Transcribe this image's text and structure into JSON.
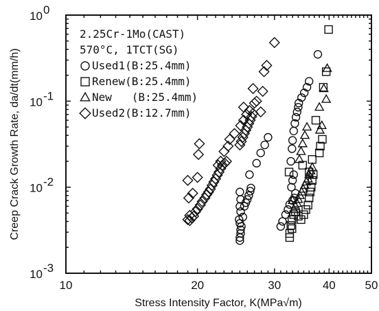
{
  "chart_data": {
    "type": "scatter",
    "xlabel": "Stress Intensity Factor, K(MPa√m)",
    "ylabel": "Creep Crack Growth Rate, da/dt(mm/h)",
    "x_scale": "log",
    "y_scale": "log",
    "xlim": [
      10,
      50
    ],
    "ylim": [
      0.001,
      1
    ],
    "x_ticks": [
      10,
      20,
      30,
      40,
      50
    ],
    "x_tick_labels": [
      "10",
      "20",
      "30",
      "40",
      "50"
    ],
    "y_ticks": [
      0.001,
      0.01,
      0.1,
      1
    ],
    "y_tick_labels": [
      {
        "base": "10",
        "exp": "-3"
      },
      {
        "base": "10",
        "exp": "-2"
      },
      {
        "base": "10",
        "exp": "-1"
      },
      {
        "base": "10",
        "exp": "0"
      }
    ],
    "annotation_lines": [
      "2.25Cr-1Mo(CAST)",
      "570°C, 1TCT(SG)"
    ],
    "grid": false,
    "legend_position": "top-left",
    "series": [
      {
        "name": "Used1(B:25.4mm)",
        "marker": "circle",
        "points": [
          [
            25.0,
            0.0024
          ],
          [
            25.0,
            0.0026
          ],
          [
            25.1,
            0.0029
          ],
          [
            25.1,
            0.0032
          ],
          [
            25.2,
            0.0035
          ],
          [
            25.0,
            0.0038
          ],
          [
            24.9,
            0.0042
          ],
          [
            25.4,
            0.0045
          ],
          [
            25.1,
            0.0052
          ],
          [
            25.0,
            0.006
          ],
          [
            25.1,
            0.0072
          ],
          [
            25.0,
            0.0088
          ],
          [
            25.6,
            0.006
          ],
          [
            25.8,
            0.0066
          ],
          [
            26.0,
            0.0072
          ],
          [
            26.2,
            0.008
          ],
          [
            26.4,
            0.009
          ],
          [
            26.5,
            0.0098
          ],
          [
            26.3,
            0.014
          ],
          [
            27.3,
            0.019
          ],
          [
            27.9,
            0.025
          ],
          [
            28.5,
            0.031
          ],
          [
            29.0,
            0.038
          ],
          [
            31.0,
            0.0035
          ],
          [
            31.3,
            0.004
          ],
          [
            31.8,
            0.0048
          ],
          [
            32.2,
            0.0055
          ],
          [
            32.5,
            0.0063
          ],
          [
            33.0,
            0.007
          ],
          [
            33.3,
            0.0075
          ],
          [
            33.5,
            0.0085
          ],
          [
            32.8,
            0.01
          ],
          [
            33.0,
            0.012
          ],
          [
            33.2,
            0.014
          ],
          [
            32.7,
            0.02
          ],
          [
            32.9,
            0.028
          ],
          [
            33.0,
            0.035
          ],
          [
            33.2,
            0.045
          ],
          [
            33.4,
            0.055
          ],
          [
            33.6,
            0.065
          ],
          [
            33.8,
            0.075
          ],
          [
            34.0,
            0.085
          ],
          [
            34.1,
            0.095
          ],
          [
            34.6,
            0.11
          ],
          [
            35.1,
            0.125
          ],
          [
            35.6,
            0.145
          ],
          [
            36.0,
            0.17
          ],
          [
            37.7,
            0.35
          ]
        ]
      },
      {
        "name": "Renew(B:25.4mm)",
        "marker": "square",
        "points": [
          [
            32.5,
            0.0026
          ],
          [
            32.5,
            0.0029
          ],
          [
            32.9,
            0.0033
          ],
          [
            32.7,
            0.0036
          ],
          [
            32.9,
            0.0042
          ],
          [
            33.2,
            0.0048
          ],
          [
            33.5,
            0.0052
          ],
          [
            34.0,
            0.0046
          ],
          [
            34.5,
            0.0042
          ],
          [
            35.0,
            0.0048
          ],
          [
            35.4,
            0.0055
          ],
          [
            35.8,
            0.0062
          ],
          [
            36.0,
            0.0075
          ],
          [
            36.2,
            0.0088
          ],
          [
            36.4,
            0.01
          ],
          [
            36.6,
            0.012
          ],
          [
            36.8,
            0.014
          ],
          [
            34.8,
            0.018
          ],
          [
            36.0,
            0.015
          ],
          [
            36.6,
            0.021
          ],
          [
            38.0,
            0.025
          ],
          [
            38.2,
            0.03
          ],
          [
            38.6,
            0.036
          ],
          [
            32.4,
            0.015
          ],
          [
            37.3,
            0.06
          ],
          [
            38.8,
            0.145
          ],
          [
            39.4,
            0.22
          ],
          [
            39.9,
            0.68
          ]
        ]
      },
      {
        "name": "New   (B:25.4mm)",
        "marker": "triangle",
        "points": [
          [
            33.2,
            0.0055
          ],
          [
            33.5,
            0.006
          ],
          [
            33.8,
            0.0065
          ],
          [
            34.0,
            0.0072
          ],
          [
            34.3,
            0.008
          ],
          [
            34.6,
            0.0088
          ],
          [
            34.9,
            0.0095
          ],
          [
            35.2,
            0.0105
          ],
          [
            35.5,
            0.0115
          ],
          [
            35.8,
            0.0125
          ],
          [
            36.0,
            0.014
          ],
          [
            36.3,
            0.0155
          ],
          [
            36.6,
            0.017
          ],
          [
            34.2,
            0.021
          ],
          [
            34.5,
            0.026
          ],
          [
            34.8,
            0.032
          ],
          [
            35.2,
            0.04
          ],
          [
            35.6,
            0.05
          ],
          [
            38.1,
            0.046
          ],
          [
            38.5,
            0.052
          ],
          [
            39.6,
            0.24
          ],
          [
            39.4,
            0.105
          ],
          [
            38.9,
            0.14
          ],
          [
            38.0,
            0.085
          ],
          [
            33.0,
            0.007
          ]
        ]
      },
      {
        "name": "Used2(B:12.7mm)",
        "marker": "diamond",
        "points": [
          [
            19.0,
            0.0042
          ],
          [
            19.2,
            0.0041
          ],
          [
            19.4,
            0.0044
          ],
          [
            19.6,
            0.0046
          ],
          [
            19.2,
            0.0047
          ],
          [
            19.8,
            0.0052
          ],
          [
            20.0,
            0.0056
          ],
          [
            20.3,
            0.0062
          ],
          [
            20.5,
            0.0068
          ],
          [
            20.8,
            0.0075
          ],
          [
            21.0,
            0.0082
          ],
          [
            21.2,
            0.0088
          ],
          [
            21.4,
            0.0095
          ],
          [
            21.6,
            0.0105
          ],
          [
            21.8,
            0.0115
          ],
          [
            22.0,
            0.0125
          ],
          [
            22.2,
            0.0138
          ],
          [
            22.4,
            0.015
          ],
          [
            22.6,
            0.0165
          ],
          [
            22.8,
            0.018
          ],
          [
            23.1,
            0.019
          ],
          [
            23.3,
            0.02
          ],
          [
            19.1,
            0.0075
          ],
          [
            20.0,
            0.013
          ],
          [
            19.0,
            0.012
          ],
          [
            19.5,
            0.0085
          ],
          [
            20.1,
            0.024
          ],
          [
            20.2,
            0.032
          ],
          [
            22.3,
            0.018
          ],
          [
            22.6,
            0.02
          ],
          [
            23.0,
            0.026
          ],
          [
            23.5,
            0.03
          ],
          [
            23.7,
            0.036
          ],
          [
            24.3,
            0.042
          ],
          [
            25.0,
            0.031
          ],
          [
            25.2,
            0.034
          ],
          [
            25.4,
            0.038
          ],
          [
            25.6,
            0.042
          ],
          [
            25.8,
            0.046
          ],
          [
            26.0,
            0.05
          ],
          [
            26.2,
            0.055
          ],
          [
            26.4,
            0.06
          ],
          [
            26.6,
            0.066
          ],
          [
            26.8,
            0.072
          ],
          [
            25.1,
            0.052
          ],
          [
            25.5,
            0.06
          ],
          [
            25.9,
            0.07
          ],
          [
            26.3,
            0.078
          ],
          [
            25.5,
            0.085
          ],
          [
            27.0,
            0.095
          ],
          [
            27.3,
            0.1
          ],
          [
            26.8,
            0.14
          ],
          [
            27.9,
            0.075
          ],
          [
            28.2,
            0.13
          ],
          [
            28.4,
            0.22
          ],
          [
            28.8,
            0.26
          ],
          [
            30.0,
            0.48
          ]
        ]
      }
    ]
  }
}
